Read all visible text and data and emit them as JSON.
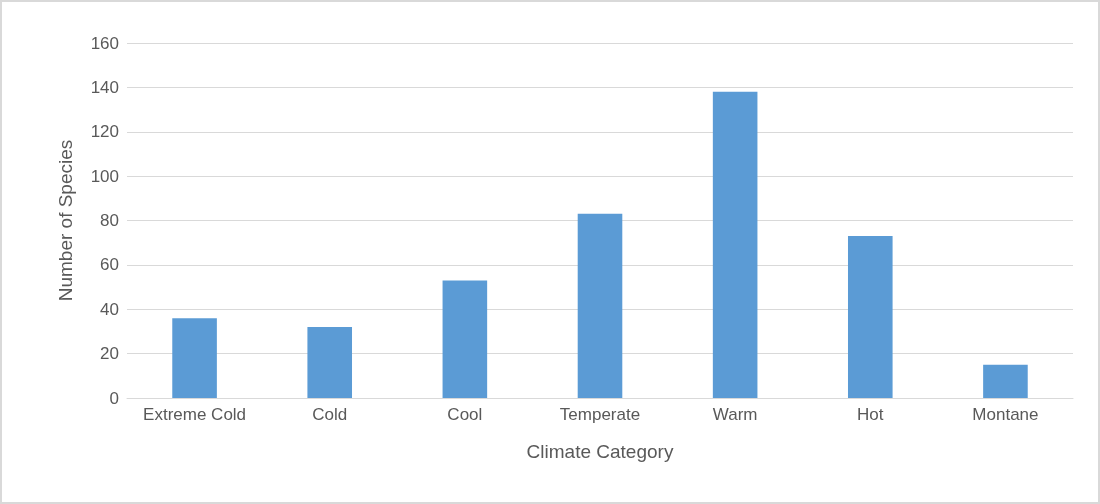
{
  "chart_data": {
    "type": "bar",
    "xlabel": "Climate Category",
    "ylabel": "Number of Species",
    "categories": [
      "Extreme Cold",
      "Cold",
      "Cool",
      "Temperate",
      "Warm",
      "Hot",
      "Montane"
    ],
    "values": [
      36,
      32,
      53,
      83,
      138,
      73,
      15
    ],
    "color": "#5b9bd5",
    "ylim": [
      0,
      160
    ],
    "yticks": [
      0,
      20,
      40,
      60,
      80,
      100,
      120,
      140,
      160
    ],
    "grid": "y"
  }
}
